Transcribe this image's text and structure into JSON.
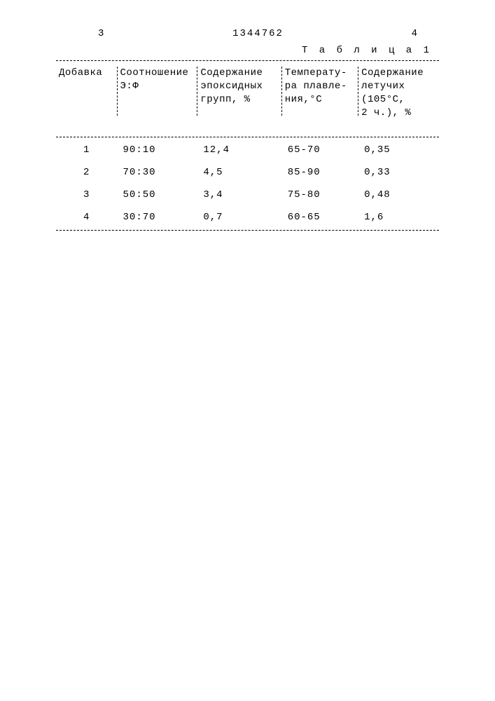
{
  "header": {
    "page_left": "3",
    "doc_number": "1344762",
    "page_right": "4"
  },
  "table": {
    "title": "Т а б л и ц а 1",
    "columns": [
      {
        "label": "Добавка"
      },
      {
        "label": "Соотношение\nЭ:Ф"
      },
      {
        "label": "Содержание\nэпоксидных\nгрупп, %"
      },
      {
        "label": "Температу-\nра плавле-\nния,°С"
      },
      {
        "label": "Содержание\nлетучих\n(105°С,\n2 ч.), %"
      }
    ],
    "rows": [
      {
        "c1": "1",
        "c2": "90:10",
        "c3": "12,4",
        "c4": "65-70",
        "c5": "0,35"
      },
      {
        "c1": "2",
        "c2": "70:30",
        "c3": "4,5",
        "c4": "85-90",
        "c5": "0,33"
      },
      {
        "c1": "3",
        "c2": "50:50",
        "c3": "3,4",
        "c4": "75-80",
        "c5": "0,48"
      },
      {
        "c1": "4",
        "c2": "30:70",
        "c3": "0,7",
        "c4": "60-65",
        "c5": "1,6"
      }
    ]
  }
}
